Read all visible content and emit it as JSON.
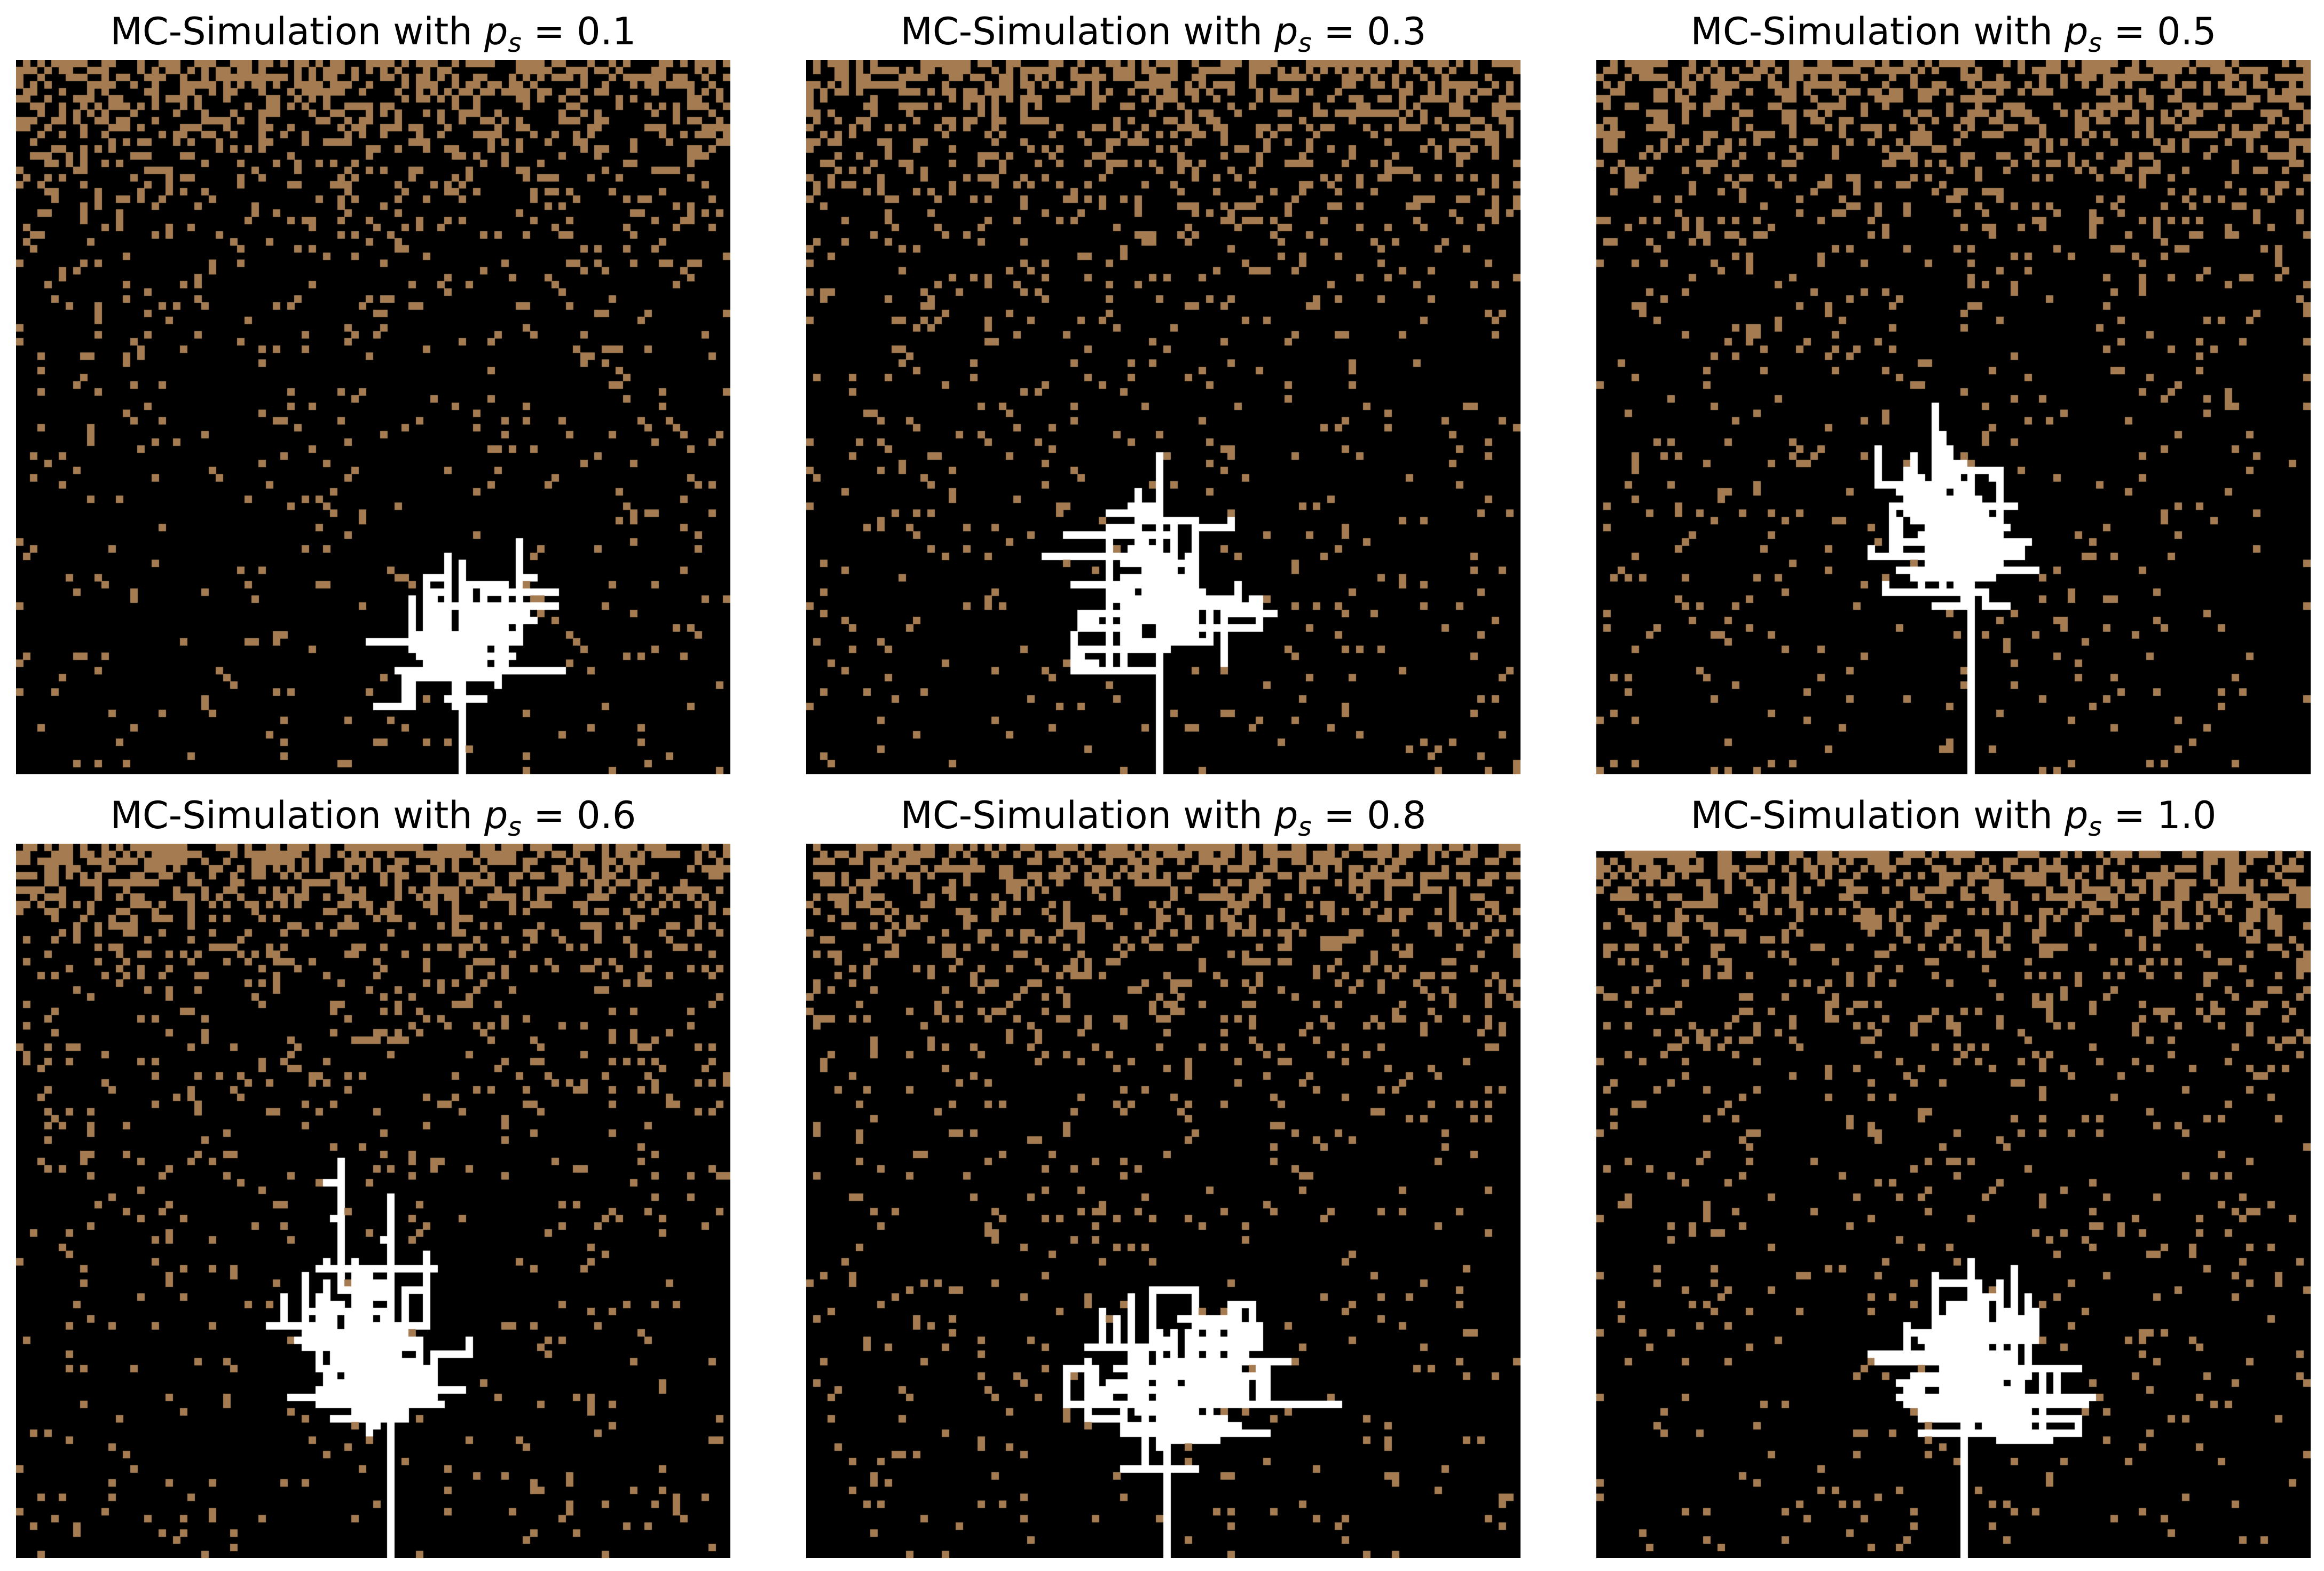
{
  "figure": {
    "colors": {
      "background": "#000000",
      "particle": "#a57c52",
      "aggregate": "#ffffff"
    }
  },
  "chart_data": [
    {
      "type": "heatmap",
      "title_prefix": "MC-Simulation with",
      "param_symbol": "p",
      "param_subscript": "s",
      "relation": "=",
      "value_label": "0.1",
      "ps": 0.1,
      "grid_size": [
        100,
        100
      ],
      "categories": [
        "empty",
        "particle",
        "aggregate"
      ]
    },
    {
      "type": "heatmap",
      "title_prefix": "MC-Simulation with",
      "param_symbol": "p",
      "param_subscript": "s",
      "relation": "=",
      "value_label": "0.3",
      "ps": 0.3,
      "grid_size": [
        100,
        100
      ],
      "categories": [
        "empty",
        "particle",
        "aggregate"
      ]
    },
    {
      "type": "heatmap",
      "title_prefix": "MC-Simulation with",
      "param_symbol": "p",
      "param_subscript": "s",
      "relation": "=",
      "value_label": "0.5",
      "ps": 0.5,
      "grid_size": [
        100,
        100
      ],
      "categories": [
        "empty",
        "particle",
        "aggregate"
      ]
    },
    {
      "type": "heatmap",
      "title_prefix": "MC-Simulation with",
      "param_symbol": "p",
      "param_subscript": "s",
      "relation": "=",
      "value_label": "0.6",
      "ps": 0.6,
      "grid_size": [
        100,
        100
      ],
      "categories": [
        "empty",
        "particle",
        "aggregate"
      ]
    },
    {
      "type": "heatmap",
      "title_prefix": "MC-Simulation with",
      "param_symbol": "p",
      "param_subscript": "s",
      "relation": "=",
      "value_label": "0.8",
      "ps": 0.8,
      "grid_size": [
        100,
        100
      ],
      "categories": [
        "empty",
        "particle",
        "aggregate"
      ]
    },
    {
      "type": "heatmap",
      "title_prefix": "MC-Simulation with",
      "param_symbol": "p",
      "param_subscript": "s",
      "relation": "=",
      "value_label": "1.0",
      "ps": 1.0,
      "grid_size": [
        100,
        100
      ],
      "categories": [
        "empty",
        "particle",
        "aggregate"
      ]
    }
  ]
}
